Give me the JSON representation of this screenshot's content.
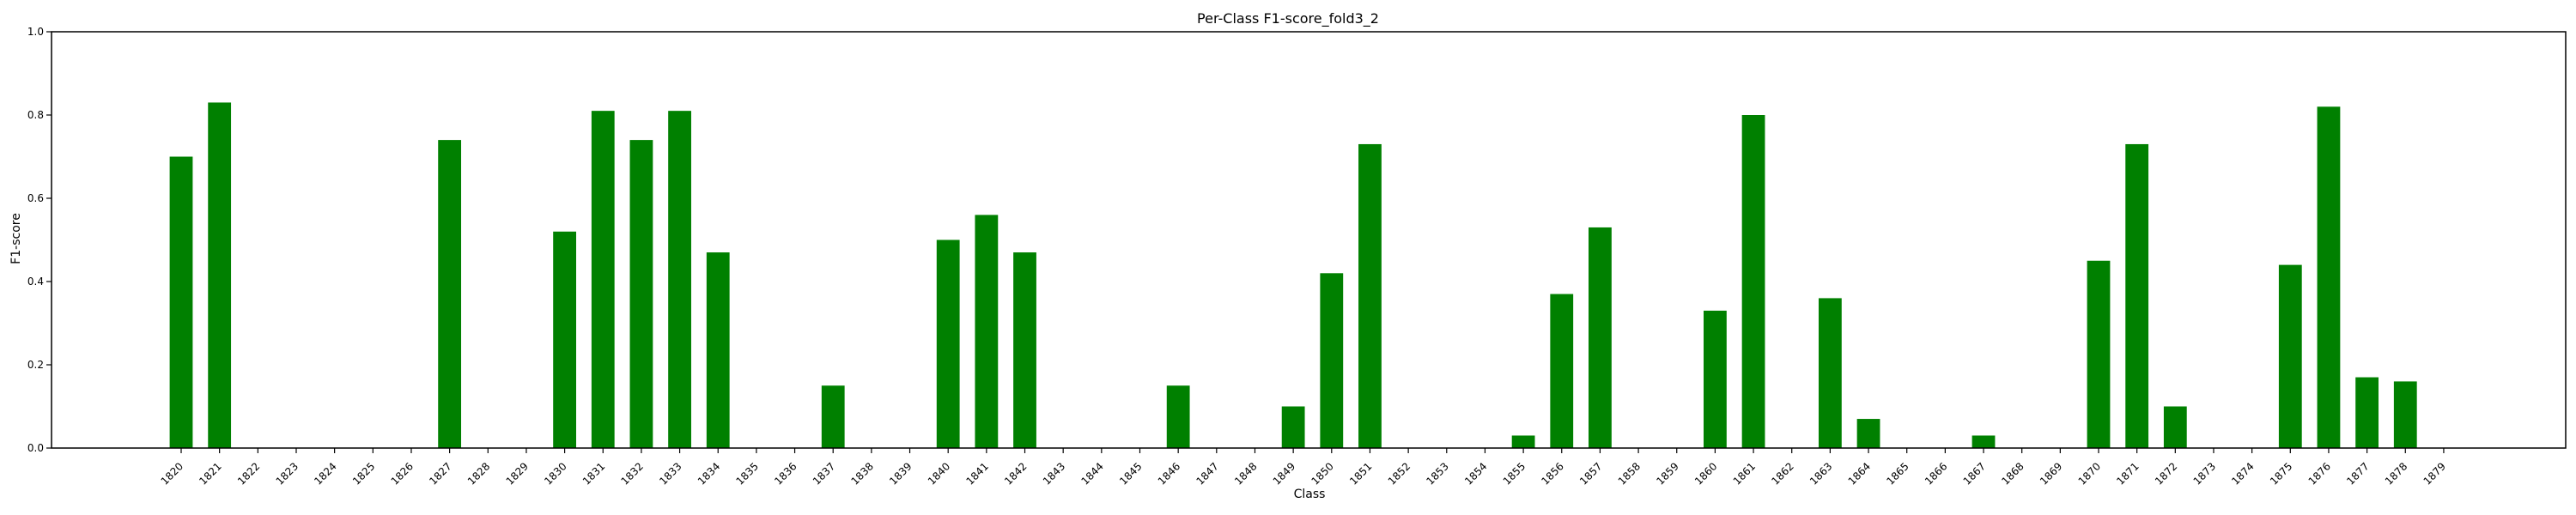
{
  "chart_data": {
    "type": "bar",
    "title": "Per-Class F1-score_fold3_2",
    "xlabel": "Class",
    "ylabel": "F1-score",
    "ylim": [
      0,
      1.0
    ],
    "yticks": [
      "0.0",
      "0.2",
      "0.4",
      "0.6",
      "0.8",
      "1.0"
    ],
    "grid": false,
    "legend": "none",
    "bar_color": "#008000",
    "categories": [
      "1820",
      "1821",
      "1822",
      "1823",
      "1824",
      "1825",
      "1826",
      "1827",
      "1828",
      "1829",
      "1830",
      "1831",
      "1832",
      "1833",
      "1834",
      "1835",
      "1836",
      "1837",
      "1838",
      "1839",
      "1840",
      "1841",
      "1842",
      "1843",
      "1844",
      "1845",
      "1846",
      "1847",
      "1848",
      "1849",
      "1850",
      "1851",
      "1852",
      "1853",
      "1854",
      "1855",
      "1856",
      "1857",
      "1858",
      "1859",
      "1860",
      "1861",
      "1862",
      "1863",
      "1864",
      "1865",
      "1866",
      "1867",
      "1868",
      "1869",
      "1870",
      "1871",
      "1872",
      "1873",
      "1874",
      "1875",
      "1876",
      "1877",
      "1878",
      "1879"
    ],
    "values": [
      0.7,
      0.83,
      0,
      0,
      0,
      0,
      0,
      0.74,
      0,
      0,
      0.52,
      0.81,
      0.74,
      0.81,
      0.47,
      0,
      0,
      0.15,
      0,
      0,
      0.5,
      0.56,
      0.47,
      0,
      0,
      0,
      0.15,
      0,
      0,
      0.1,
      0.42,
      0.73,
      0,
      0,
      0,
      0.03,
      0.37,
      0.53,
      0,
      0,
      0.33,
      0.8,
      0,
      0.36,
      0.07,
      0,
      0,
      0.03,
      0,
      0,
      0.45,
      0.73,
      0.1,
      0,
      0,
      0.44,
      0.82,
      0.17,
      0.16,
      0
    ]
  }
}
